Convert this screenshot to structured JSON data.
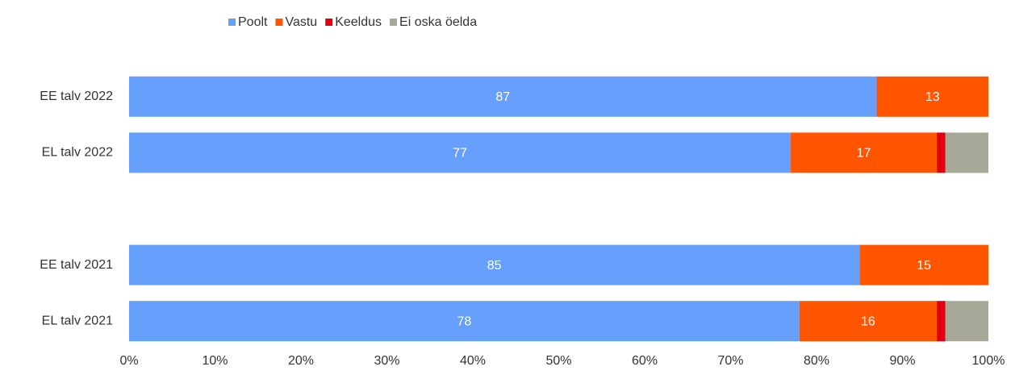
{
  "chart_data": {
    "type": "stacked_bar_horizontal",
    "categories": [
      "EE talv 2022",
      "EL talv 2022",
      null,
      "EE talv 2021",
      "EL talv 2021"
    ],
    "series": [
      {
        "name": "Poolt",
        "color": "#669ffc",
        "show_labels": true,
        "values": [
          87,
          77,
          null,
          85,
          78
        ]
      },
      {
        "name": "Vastu",
        "color": "#ff5500",
        "show_labels": true,
        "values": [
          13,
          17,
          null,
          15,
          16
        ]
      },
      {
        "name": "Keeldus",
        "color": "#e0000f",
        "show_labels": false,
        "values": [
          0,
          1,
          null,
          0,
          1
        ]
      },
      {
        "name": "Ei oska öelda",
        "color": "#a8a898",
        "show_labels": false,
        "values": [
          0,
          5,
          null,
          0,
          5
        ]
      }
    ],
    "xlim": [
      0,
      100
    ],
    "xticks": [
      {
        "value": 0,
        "label": "0%"
      },
      {
        "value": 10,
        "label": "10%"
      },
      {
        "value": 20,
        "label": "20%"
      },
      {
        "value": 30,
        "label": "30%"
      },
      {
        "value": 40,
        "label": "40%"
      },
      {
        "value": 50,
        "label": "50%"
      },
      {
        "value": 60,
        "label": "60%"
      },
      {
        "value": 70,
        "label": "70%"
      },
      {
        "value": 80,
        "label": "80%"
      },
      {
        "value": 90,
        "label": "90%"
      },
      {
        "value": 100,
        "label": "100%"
      }
    ],
    "legend": "top"
  }
}
